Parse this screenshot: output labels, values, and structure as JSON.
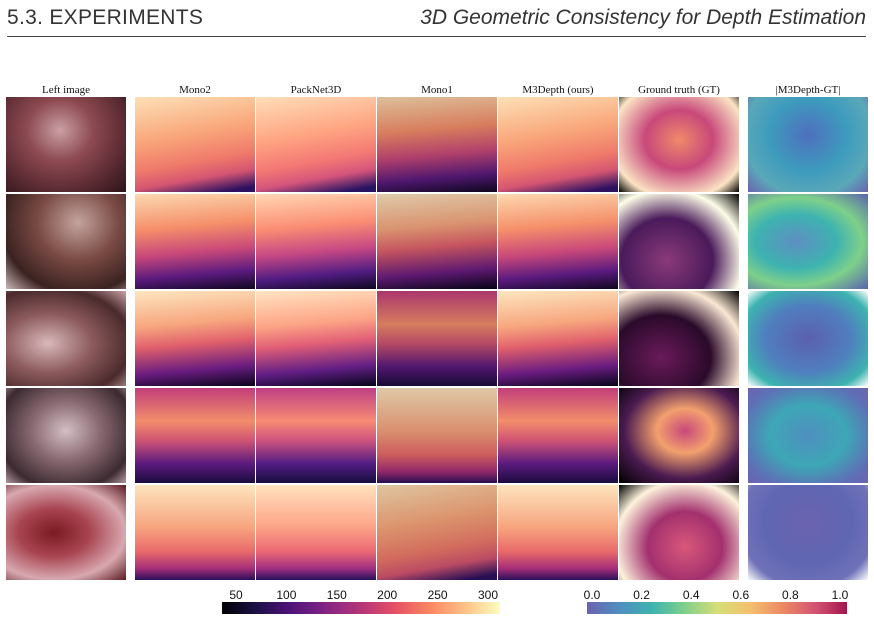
{
  "header": {
    "section": "5.3. EXPERIMENTS",
    "chapter_title": "3D Geometric Consistency for Depth Estimation"
  },
  "figure": {
    "column_headers": [
      "Left image",
      "Mono2",
      "PackNet3D",
      "Mono1",
      "M3Depth (ours)",
      "Ground truth (GT)",
      "|M3Depth-GT|"
    ],
    "row_count": 5,
    "depth_colorbar": {
      "colormap": "magma",
      "ticks": [
        "50",
        "100",
        "150",
        "200",
        "250",
        "300"
      ]
    },
    "error_colorbar": {
      "colormap": "viridis-magma",
      "ticks": [
        "0.0",
        "0.2",
        "0.4",
        "0.6",
        "0.8",
        "1.0"
      ]
    }
  }
}
